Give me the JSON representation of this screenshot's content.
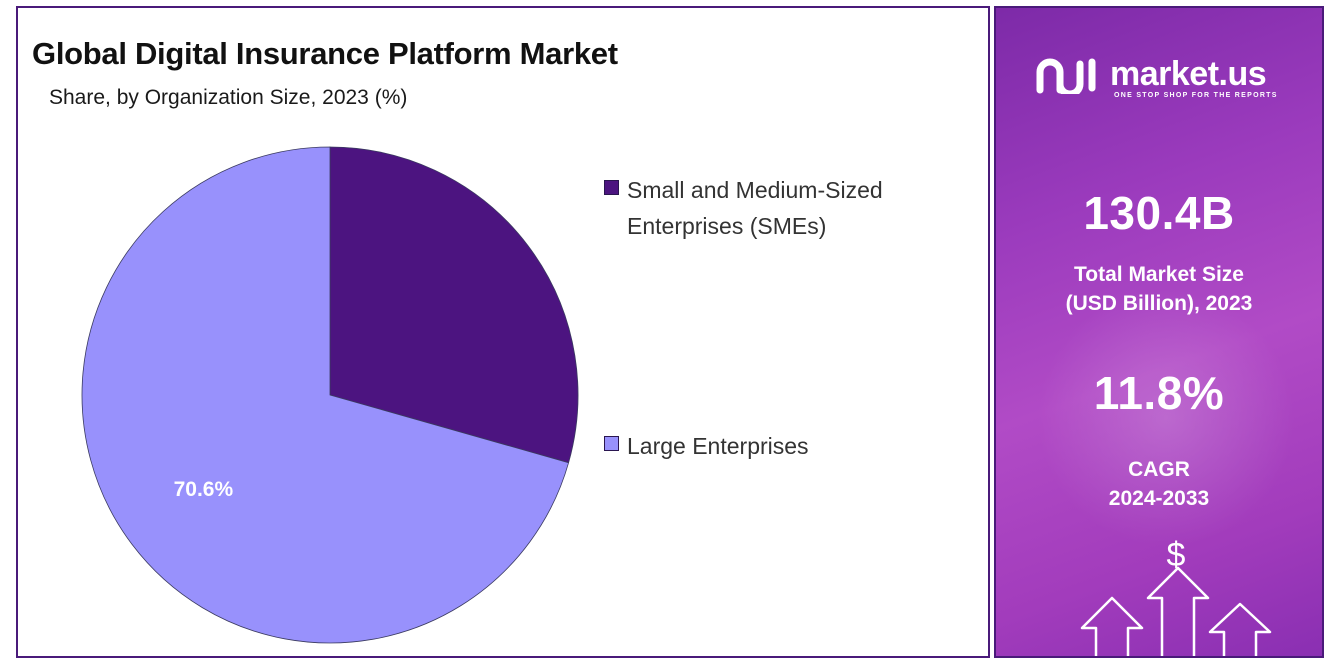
{
  "chart_data": {
    "type": "pie",
    "title": "Global Digital Insurance Platform Market",
    "subtitle": "Share, by Organization Size, 2023 (%)",
    "slices": [
      {
        "name": "Small and Medium-Sized Enterprises (SMEs)",
        "value": 29.4,
        "label": "",
        "color": "#4c1480"
      },
      {
        "name": "Large Enterprises",
        "value": 70.6,
        "label": "70.6%",
        "color": "#9891fc"
      }
    ],
    "legend_position": "right"
  },
  "sidebar": {
    "brand": "market.us",
    "tagline": "ONE STOP SHOP FOR THE REPORTS",
    "market_size_value": "130.4B",
    "market_size_caption_line1": "Total Market Size",
    "market_size_caption_line2": "(USD Billion), 2023",
    "cagr_value": "11.8%",
    "cagr_caption_line1": "CAGR",
    "cagr_caption_line2": "2024-2033",
    "dollar_symbol": "$",
    "logo_icon": "market-us-logo-icon",
    "accent_color": "#9b3bbd"
  }
}
